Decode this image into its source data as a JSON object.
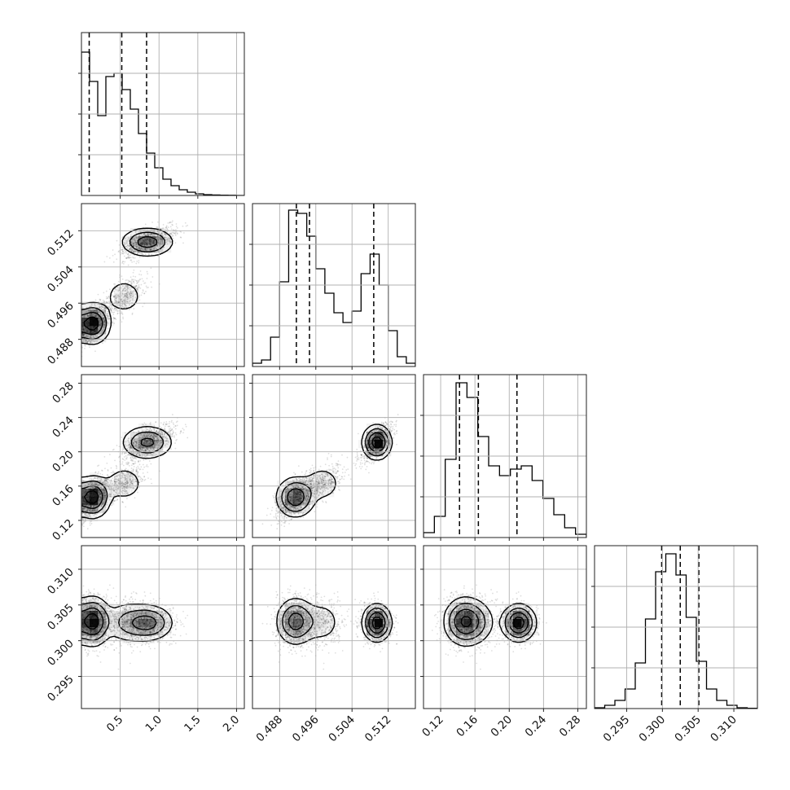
{
  "chart_data": {
    "type": "corner",
    "grid": true,
    "colors": {
      "line": "#000000",
      "density": "#000000",
      "grid": "#b0b0b0"
    },
    "params": [
      {
        "range": [
          0.0,
          2.1
        ],
        "ticks": [
          0.5,
          1.0,
          1.5,
          2.0
        ],
        "tick_labels": [
          "0.5",
          "1.0",
          "1.5",
          "2.0"
        ],
        "quantiles": [
          0.1,
          0.52,
          0.84
        ]
      },
      {
        "range": [
          0.482,
          0.518
        ],
        "ticks": [
          0.488,
          0.496,
          0.504,
          0.512
        ],
        "tick_labels": [
          "0.488",
          "0.496",
          "0.504",
          "0.512"
        ],
        "quantiles": [
          0.4917,
          0.4946,
          0.5088
        ]
      },
      {
        "range": [
          0.1,
          0.29
        ],
        "ticks": [
          0.12,
          0.16,
          0.2,
          0.24,
          0.28
        ],
        "tick_labels": [
          "0.12",
          "0.16",
          "0.20",
          "0.24",
          "0.28"
        ],
        "quantiles": [
          0.142,
          0.164,
          0.209
        ]
      },
      {
        "range": [
          0.2905,
          0.3133
        ],
        "ticks": [
          0.295,
          0.3,
          0.305,
          0.31
        ],
        "tick_labels": [
          "0.295",
          "0.300",
          "0.305",
          "0.310"
        ],
        "quantiles": [
          0.2999,
          0.3025,
          0.3051
        ]
      }
    ],
    "histograms": [
      [
        0.88,
        0.7,
        0.49,
        0.73,
        0.75,
        0.65,
        0.53,
        0.38,
        0.26,
        0.17,
        0.1,
        0.06,
        0.035,
        0.02,
        0.01,
        0.005,
        0.003,
        0.002,
        0.001,
        0.0
      ],
      [
        0.02,
        0.04,
        0.18,
        0.52,
        0.96,
        0.94,
        0.8,
        0.6,
        0.45,
        0.33,
        0.27,
        0.34,
        0.57,
        0.69,
        0.5,
        0.22,
        0.06,
        0.02
      ],
      [
        0.03,
        0.13,
        0.48,
        0.95,
        0.86,
        0.62,
        0.44,
        0.38,
        0.42,
        0.44,
        0.35,
        0.24,
        0.14,
        0.06,
        0.02
      ],
      [
        0.005,
        0.02,
        0.05,
        0.12,
        0.28,
        0.55,
        0.84,
        0.95,
        0.82,
        0.56,
        0.29,
        0.12,
        0.05,
        0.02,
        0.005,
        0.002
      ]
    ],
    "clusters": [
      {
        "weight": 0.46,
        "mean": [
          0.15,
          0.4915,
          0.147,
          0.3027
        ],
        "sd": [
          0.11,
          0.0022,
          0.012,
          0.0017
        ]
      },
      {
        "weight": 0.16,
        "mean": [
          0.55,
          0.4975,
          0.163,
          0.3026
        ],
        "sd": [
          0.15,
          0.0024,
          0.012,
          0.0017
        ]
      },
      {
        "weight": 0.38,
        "mean": [
          0.85,
          0.5095,
          0.211,
          0.3025
        ],
        "sd": [
          0.17,
          0.0016,
          0.01,
          0.0013
        ]
      }
    ]
  }
}
